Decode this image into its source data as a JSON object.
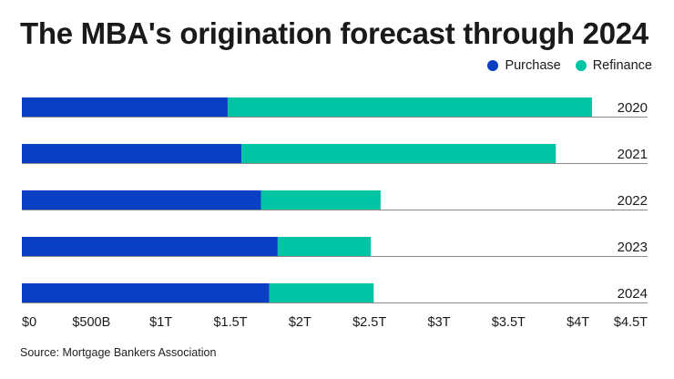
{
  "colors": {
    "purchase": "#0a3fc4",
    "refinance": "#00c4a3",
    "rule": "#8a8a8a"
  },
  "chart_data": {
    "type": "bar",
    "orientation": "horizontal",
    "stacked": true,
    "title": "The MBA's origination forecast through 2024",
    "categories": [
      "2020",
      "2021",
      "2022",
      "2023",
      "2024"
    ],
    "series": [
      {
        "name": "Purchase",
        "color_key": "purchase",
        "values": [
          1480,
          1580,
          1720,
          1840,
          1780
        ]
      },
      {
        "name": "Refinance",
        "color_key": "refinance",
        "values": [
          2620,
          2260,
          860,
          670,
          750
        ]
      }
    ],
    "xlim": [
      0,
      4500
    ],
    "ticks": [
      {
        "value": 0,
        "label": "$0"
      },
      {
        "value": 500,
        "label": "$500B"
      },
      {
        "value": 1000,
        "label": "$1T"
      },
      {
        "value": 1500,
        "label": "$1.5T"
      },
      {
        "value": 2000,
        "label": "$2T"
      },
      {
        "value": 2500,
        "label": "$2.5T"
      },
      {
        "value": 3000,
        "label": "$3T"
      },
      {
        "value": 3500,
        "label": "$3.5T"
      },
      {
        "value": 4000,
        "label": "$4T"
      },
      {
        "value": 4500,
        "label": "$4.5T"
      }
    ],
    "legend_position": "top-right",
    "source": "Source: Mortgage Bankers Association"
  }
}
